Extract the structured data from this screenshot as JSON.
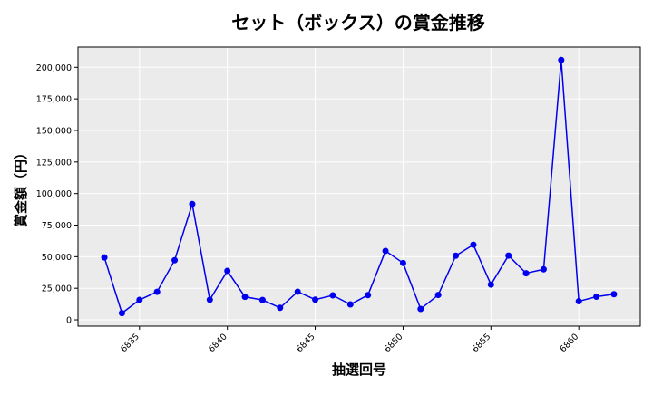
{
  "chart_data": {
    "type": "line",
    "title": "セット（ボックス）の賞金推移",
    "xlabel": "抽選回号",
    "ylabel": "賞金額（円）",
    "xlim": [
      6831.5,
      6863.5
    ],
    "ylim": [
      -5000,
      216000
    ],
    "grid": true,
    "x_ticks": [
      6835,
      6840,
      6845,
      6850,
      6855,
      6860
    ],
    "y_ticks": [
      0,
      25000,
      50000,
      75000,
      100000,
      125000,
      150000,
      175000,
      200000
    ],
    "y_tick_labels": [
      "0",
      "25,000",
      "50,000",
      "75,000",
      "100,000",
      "125,000",
      "150,000",
      "175,000",
      "200,000"
    ],
    "series": [
      {
        "color": "#0000ee",
        "x": [
          6833,
          6834,
          6835,
          6836,
          6837,
          6838,
          6839,
          6840,
          6841,
          6842,
          6843,
          6844,
          6845,
          6846,
          6847,
          6848,
          6849,
          6850,
          6851,
          6852,
          6853,
          6854,
          6855,
          6856,
          6857,
          6858,
          6859,
          6860,
          6861,
          6862
        ],
        "values": [
          49400,
          5300,
          15800,
          22200,
          47200,
          91700,
          15900,
          38800,
          18200,
          15700,
          9500,
          22300,
          16000,
          19400,
          12200,
          19600,
          54600,
          45000,
          8600,
          19700,
          50800,
          59500,
          27900,
          50900,
          36900,
          40000,
          205800,
          14700,
          18300,
          20300
        ]
      }
    ]
  }
}
